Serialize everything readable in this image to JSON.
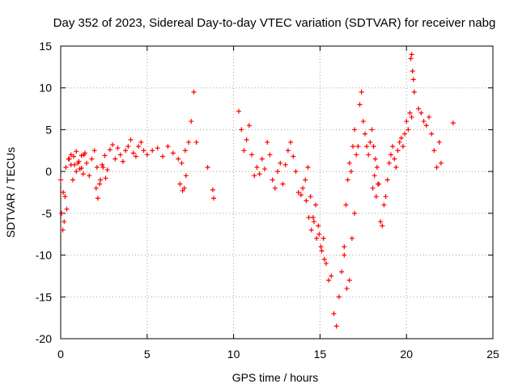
{
  "chart_data": {
    "type": "scatter",
    "title": "Day 352 of 2023, Sidereal Day-to-day VTEC variation (SDTVAR) for receiver nabg",
    "xlabel": "GPS time / hours",
    "ylabel": "SDTVAR / TECUs",
    "xlim": [
      0,
      25
    ],
    "ylim": [
      -20,
      15
    ],
    "x_ticks": [
      0,
      5,
      10,
      15,
      20,
      25
    ],
    "y_ticks": [
      -20,
      -15,
      -10,
      -5,
      0,
      5,
      10,
      15
    ],
    "grid": true,
    "marker": "+",
    "colors": {
      "marker": "#ff0000",
      "grid": "#a0a0a0",
      "axis": "#000000"
    },
    "series": [
      {
        "name": "SDTVAR",
        "segments": [
          {
            "x": [
              0.0,
              0.15,
              0.3,
              0.45,
              0.6,
              0.75,
              0.9,
              1.05,
              1.2,
              1.35,
              1.5,
              1.65,
              1.8,
              1.95,
              2.1,
              2.25,
              2.4,
              2.55,
              2.7,
              2.85,
              3.0,
              3.15,
              3.3,
              3.45,
              3.6,
              3.75,
              3.9,
              4.05,
              4.2,
              4.35,
              4.5,
              4.65,
              4.8,
              5.0,
              5.3,
              5.6,
              5.9,
              6.2,
              6.5,
              6.8,
              7.0,
              7.2,
              7.4,
              7.55,
              7.7,
              7.85
            ],
            "y": [
              -1.0,
              -2.5,
              0.5,
              1.5,
              0.8,
              1.8,
              0.0,
              1.2,
              0.4,
              2.0,
              1.0,
              -0.5,
              1.5,
              2.5,
              0.5,
              -1.5,
              0.8,
              1.9,
              0.2,
              2.6,
              3.2,
              1.5,
              2.8,
              2.0,
              1.2,
              2.5,
              3.0,
              3.8,
              2.2,
              1.8,
              3.0,
              3.5,
              2.5,
              2.0,
              2.5,
              2.8,
              1.8,
              3.0,
              2.2,
              1.5,
              1.0,
              2.5,
              3.5,
              6.0,
              9.5,
              3.5
            ]
          },
          {
            "x": [
              0.05,
              0.12,
              0.2,
              0.25,
              0.35
            ],
            "y": [
              -5.0,
              -7.0,
              -6.0,
              -3.0,
              -4.5
            ]
          },
          {
            "x": [
              0.5,
              0.6,
              0.7,
              0.8,
              0.9,
              1.0,
              1.1,
              1.2,
              1.3,
              1.4
            ],
            "y": [
              1.5,
              2.0,
              -1.0,
              0.8,
              2.4,
              1.0,
              0.3,
              1.9,
              -0.3,
              2.2
            ]
          },
          {
            "x": [
              2.05,
              2.15,
              2.3,
              2.45,
              2.6
            ],
            "y": [
              -2.0,
              -3.2,
              -1.0,
              0.5,
              -0.8
            ]
          },
          {
            "x": [
              6.9,
              7.05,
              7.15,
              7.25
            ],
            "y": [
              -1.5,
              -2.3,
              -2.0,
              -0.5
            ]
          },
          {
            "x": [
              8.5,
              8.8,
              8.85
            ],
            "y": [
              0.5,
              -2.2,
              -3.2
            ]
          },
          {
            "x": [
              10.3,
              10.45,
              10.6,
              10.75,
              10.9,
              11.05,
              11.2,
              11.35,
              11.5,
              11.65,
              11.8,
              11.95,
              12.1,
              12.25,
              12.4,
              12.55,
              12.7,
              12.85,
              13.0,
              13.15,
              13.3,
              13.45,
              13.6,
              13.75,
              13.9
            ],
            "y": [
              7.2,
              5.0,
              2.5,
              3.8,
              5.5,
              2.0,
              -0.5,
              0.5,
              -0.3,
              1.5,
              0.3,
              3.5,
              2.0,
              -1.0,
              -2.0,
              0.0,
              1.0,
              -1.5,
              0.8,
              2.5,
              3.5,
              1.8,
              0.0,
              -2.5,
              -2.8
            ]
          },
          {
            "x": [
              14.0,
              14.15,
              14.3,
              14.45,
              14.6,
              14.75,
              14.9,
              15.05,
              15.2,
              15.35,
              15.5,
              15.65,
              15.8,
              15.95,
              16.1,
              16.25,
              16.4,
              16.55,
              16.7,
              16.85,
              17.0
            ],
            "y": [
              -2.0,
              -1.0,
              0.5,
              -3.0,
              -5.5,
              -4.0,
              -6.5,
              -9.0,
              -8.0,
              -11.0,
              -13.0,
              -12.5,
              -17.0,
              -18.5,
              -15.0,
              -12.0,
              -10.0,
              -14.0,
              -13.0,
              -8.0,
              -5.0
            ]
          },
          {
            "x": [
              14.2,
              14.35,
              14.5,
              14.65,
              14.8,
              14.95,
              15.1,
              15.25
            ],
            "y": [
              -3.5,
              -5.5,
              -7.0,
              -6.0,
              -8.0,
              -7.5,
              -9.5,
              -10.5
            ]
          },
          {
            "x": [
              16.4,
              16.5,
              16.6,
              16.7,
              16.8,
              16.9,
              17.0,
              17.1,
              17.2,
              17.3,
              17.4,
              17.5,
              17.6,
              17.7,
              17.8,
              17.9,
              18.0,
              18.1,
              18.2,
              18.3,
              18.4,
              18.5,
              18.6,
              18.7,
              18.8,
              18.9,
              19.0,
              19.1,
              19.2,
              19.3,
              19.4,
              19.5,
              19.6,
              19.7,
              19.8,
              19.9,
              20.0,
              20.1,
              20.2,
              20.3
            ],
            "y": [
              -9.0,
              -4.0,
              -1.0,
              1.0,
              0.0,
              3.0,
              5.0,
              2.0,
              3.0,
              8.0,
              9.5,
              6.0,
              4.5,
              3.0,
              2.0,
              3.5,
              5.0,
              3.0,
              1.5,
              0.5,
              -1.5,
              -6.0,
              -6.5,
              -4.0,
              -3.0,
              -1.0,
              1.0,
              2.0,
              3.0,
              1.5,
              0.5,
              2.5,
              3.5,
              4.0,
              3.0,
              4.5,
              6.0,
              5.0,
              7.0,
              6.5
            ]
          },
          {
            "x": [
              18.05,
              18.15,
              18.25,
              18.35
            ],
            "y": [
              -2.0,
              -0.5,
              -3.0,
              -1.5
            ]
          },
          {
            "x": [
              20.25,
              20.3,
              20.35,
              20.4,
              20.45
            ],
            "y": [
              13.5,
              14.0,
              12.0,
              11.0,
              9.5
            ]
          },
          {
            "x": [
              20.7,
              20.85,
              21.0,
              21.15,
              21.3,
              21.45,
              21.6,
              21.75,
              21.9,
              22.0
            ],
            "y": [
              7.5,
              7.0,
              6.0,
              5.5,
              6.5,
              4.5,
              2.5,
              0.5,
              3.5,
              1.0
            ]
          },
          {
            "x": [
              22.7
            ],
            "y": [
              5.8
            ]
          }
        ]
      }
    ]
  }
}
